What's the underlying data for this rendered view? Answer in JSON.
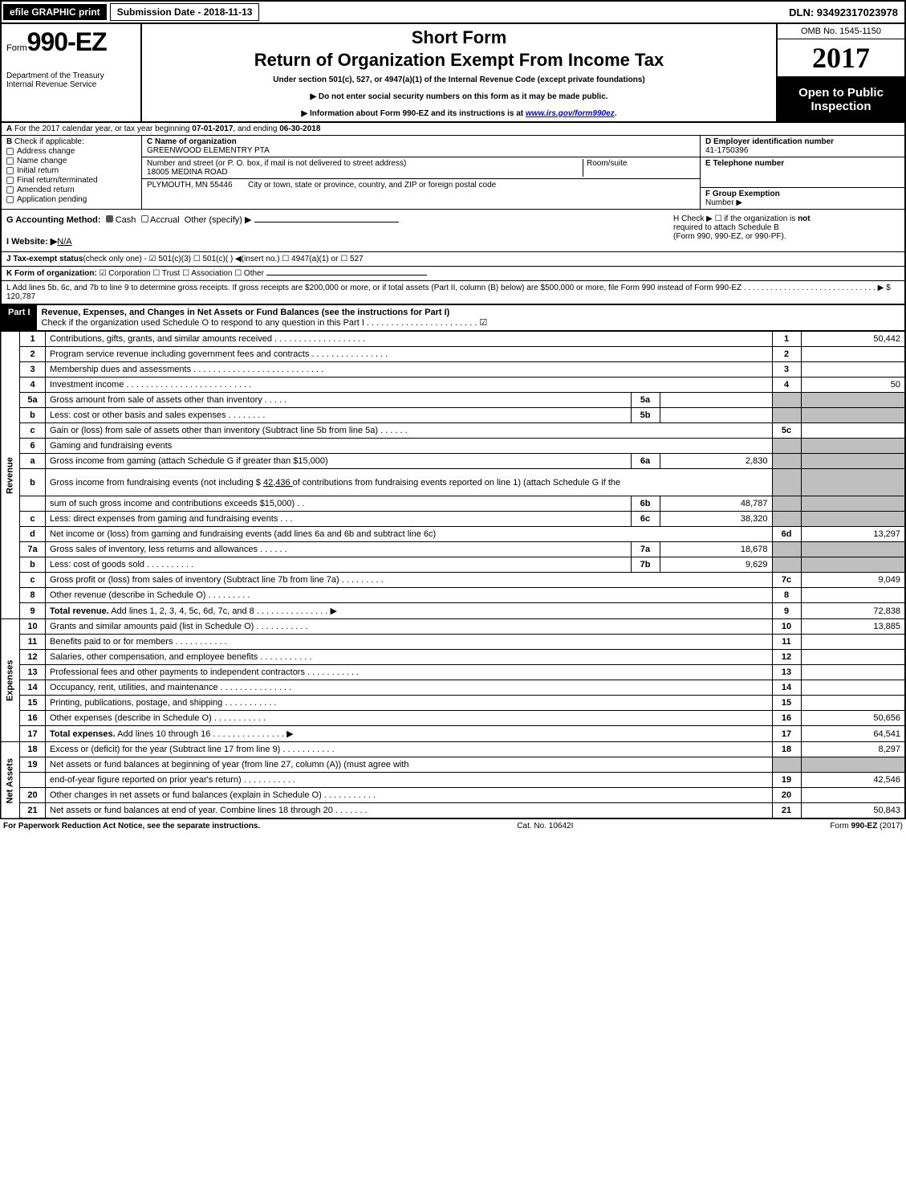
{
  "top": {
    "efile": "efile GRAPHIC print",
    "submission_label": "Submission Date - 2018-11-13",
    "dln": "DLN: 93492317023978"
  },
  "header": {
    "form_prefix": "Form",
    "form_number": "990-EZ",
    "dept1": "Department of the Treasury",
    "dept2": "Internal Revenue Service",
    "short_form": "Short Form",
    "return_title": "Return of Organization Exempt From Income Tax",
    "under_section": "Under section 501(c), 527, or 4947(a)(1) of the Internal Revenue Code (except private foundations)",
    "arrow1": "▶ Do not enter social security numbers on this form as it may be made public.",
    "arrow2_pre": "▶ Information about Form 990-EZ and its instructions is at ",
    "arrow2_link": "www.irs.gov/form990ez",
    "arrow2_post": ".",
    "omb": "OMB No. 1545-1150",
    "year": "2017",
    "open1": "Open to Public",
    "open2": "Inspection"
  },
  "lineA": {
    "text_pre": "For the 2017 calendar year, or tax year beginning ",
    "begin": "07-01-2017",
    "mid": ", and ending ",
    "end": "06-30-2018"
  },
  "lineB": {
    "label": "Check if applicable:",
    "opts": [
      "Address change",
      "Name change",
      "Initial return",
      "Final return/terminated",
      "Amended return",
      "Application pending"
    ]
  },
  "boxC": {
    "label": "C Name of organization",
    "name": "GREENWOOD ELEMENTRY PTA",
    "street_label": "Number and street (or P. O. box, if mail is not delivered to street address)",
    "street": "18005 MEDINA ROAD",
    "room_label": "Room/suite",
    "city_label": "City or town, state or province, country, and ZIP or foreign postal code",
    "city": "PLYMOUTH, MN  55446"
  },
  "boxD": {
    "label": "D Employer identification number",
    "value": "41-1750396"
  },
  "boxE": {
    "label": "E Telephone number",
    "value": ""
  },
  "boxF": {
    "label": "F Group Exemption",
    "label2": "Number  ▶",
    "value": ""
  },
  "lineG": {
    "label": "G Accounting Method:",
    "cash": "Cash",
    "accrual": "Accrual",
    "other": "Other (specify) ▶"
  },
  "lineH": {
    "text1": "H  Check ▶ ☐ if the organization is ",
    "not": "not",
    "text2": "required to attach Schedule B",
    "text3": "(Form 990, 990-EZ, or 990-PF)."
  },
  "lineI": {
    "label": "I Website: ▶",
    "value": "N/A"
  },
  "lineJ": {
    "label": "J Tax-exempt status",
    "text": "(check only one) - ☑ 501(c)(3)  ☐ 501(c)(  ) ◀(insert no.)  ☐ 4947(a)(1) or  ☐ 527"
  },
  "lineK": {
    "label": "K Form of organization:",
    "text": "☑ Corporation  ☐ Trust  ☐ Association  ☐ Other"
  },
  "lineL": {
    "text": "L Add lines 5b, 6c, and 7b to line 9 to determine gross receipts. If gross receipts are $200,000 or more, or if total assets (Part II, column (B) below) are $500,000 or more, file Form 990 instead of Form 990-EZ  .  .  .  .  .  .  .  .  .  .  .  .  .  .  .  .  .  .  .  .  .  .  .  .  .  .  .  .  .  .  ▶ $ 120,787"
  },
  "part1": {
    "label": "Part I",
    "title": "Revenue, Expenses, and Changes in Net Assets or Fund Balances (see the instructions for Part I)",
    "check_line": "Check if the organization used Schedule O to respond to any question in this Part I .  .  .  .  .  .  .  .  .  .  .  .  .  .  .  .  .  .  .  .  .  .  .  ☑"
  },
  "sections": {
    "revenue": "Revenue",
    "expenses": "Expenses",
    "net": "Net Assets"
  },
  "rows": [
    {
      "ln": "1",
      "desc": "Contributions, gifts, grants, and similar amounts received  .  .  .  .  .  .  .  .  .  .  .  .  .  .  .  .  .  .  .",
      "num": "1",
      "val": "50,442"
    },
    {
      "ln": "2",
      "desc": "Program service revenue including government fees and contracts  .  .  .  .  .  .  .  .  .  .  .  .  .  .  .  .",
      "num": "2",
      "val": ""
    },
    {
      "ln": "3",
      "desc": "Membership dues and assessments  .  .  .  .  .  .  .  .  .  .  .  .  .  .  .  .  .  .  .  .  .  .  .  .  .  .  .",
      "num": "3",
      "val": ""
    },
    {
      "ln": "4",
      "desc": "Investment income  .  .  .  .  .  .  .  .  .  .  .  .  .  .  .  .  .  .  .  .  .  .  .  .  .  .",
      "num": "4",
      "val": "50"
    },
    {
      "ln": "5a",
      "desc": "Gross amount from sale of assets other than inventory  .  .  .  .  .",
      "mid_ln": "5a",
      "mid_val": "",
      "shaded": true
    },
    {
      "ln": "b",
      "desc": "Less: cost or other basis and sales expenses  .  .  .  .  .  .  .  .",
      "mid_ln": "5b",
      "mid_val": "",
      "shaded": true
    },
    {
      "ln": "c",
      "desc": "Gain or (loss) from sale of assets other than inventory (Subtract line 5b from line 5a)      .   .   .   .   .   .",
      "num": "5c",
      "val": ""
    },
    {
      "ln": "6",
      "desc": "Gaming and fundraising events",
      "shaded": true,
      "no_mid": true
    },
    {
      "ln": "a",
      "desc": "Gross income from gaming (attach Schedule G if greater than $15,000)",
      "mid_ln": "6a",
      "mid_val": "2,830",
      "shaded": true
    },
    {
      "ln": "b",
      "desc_html": "Gross income from fundraising events (not including $ <span class='underline'>  42,436  </span>      of contributions from fundraising events reported on line 1) (attach Schedule G if the",
      "shaded": true,
      "no_mid": true,
      "tall": true
    },
    {
      "ln": "",
      "desc": "sum of such gross income and contributions exceeds $15,000)      .   .",
      "mid_ln": "6b",
      "mid_val": "48,787",
      "shaded": true
    },
    {
      "ln": "c",
      "desc": "Less: direct expenses from gaming and fundraising events      .   .   .",
      "mid_ln": "6c",
      "mid_val": "38,320",
      "shaded": true
    },
    {
      "ln": "d",
      "desc": "Net income or (loss) from gaming and fundraising events (add lines 6a and 6b and subtract line 6c)",
      "num": "6d",
      "val": "13,297"
    },
    {
      "ln": "7a",
      "desc": "Gross sales of inventory, less returns and allowances      .   .   .   .   .   .",
      "mid_ln": "7a",
      "mid_val": "18,678",
      "shaded": true
    },
    {
      "ln": "b",
      "desc": "Less: cost of goods sold                  .   .   .   .   .   .   .   .   .   .",
      "mid_ln": "7b",
      "mid_val": "9,629",
      "shaded": true
    },
    {
      "ln": "c",
      "desc": "Gross profit or (loss) from sales of inventory (Subtract line 7b from line 7a)      .   .   .   .   .   .   .   .   .",
      "num": "7c",
      "val": "9,049"
    },
    {
      "ln": "8",
      "desc": "Other revenue (describe in Schedule O)            .   .   .   .   .   .   .   .   .",
      "num": "8",
      "val": ""
    },
    {
      "ln": "9",
      "desc_html": "<b>Total revenue.</b> Add lines 1, 2, 3, 4, 5c, 6d, 7c, and 8      .   .   .   .   .   .   .   .   .   .   .   .   .   .   .  ▶",
      "num": "9",
      "val": "72,838"
    }
  ],
  "exp_rows": [
    {
      "ln": "10",
      "desc": "Grants and similar amounts paid (list in Schedule O)         .   .   .   .   .   .   .   .   .   .   .",
      "num": "10",
      "val": "13,885"
    },
    {
      "ln": "11",
      "desc": "Benefits paid to or for members                  .   .   .   .   .   .   .   .   .   .   .",
      "num": "11",
      "val": ""
    },
    {
      "ln": "12",
      "desc": "Salaries, other compensation, and employee benefits       .   .   .   .   .   .   .   .   .   .   .",
      "num": "12",
      "val": ""
    },
    {
      "ln": "13",
      "desc": "Professional fees and other payments to independent contractors    .   .   .   .   .   .   .   .   .   .   .",
      "num": "13",
      "val": ""
    },
    {
      "ln": "14",
      "desc": "Occupancy, rent, utilities, and maintenance     .   .   .   .   .   .   .   .   .   .   .   .   .   .   .",
      "num": "14",
      "val": ""
    },
    {
      "ln": "15",
      "desc": "Printing, publications, postage, and shipping          .   .   .   .   .   .   .   .   .   .   .",
      "num": "15",
      "val": ""
    },
    {
      "ln": "16",
      "desc": "Other expenses (describe in Schedule O)           .   .   .   .   .   .   .   .   .   .   .",
      "num": "16",
      "val": "50,656"
    },
    {
      "ln": "17",
      "desc_html": "<b>Total expenses.</b> Add lines 10 through 16        .   .   .   .   .   .   .   .   .   .   .   .   .   .   .  ▶",
      "num": "17",
      "val": "64,541"
    }
  ],
  "net_rows": [
    {
      "ln": "18",
      "desc": "Excess or (deficit) for the year (Subtract line 17 from line 9)       .   .   .   .   .   .   .   .   .   .   .",
      "num": "18",
      "val": "8,297"
    },
    {
      "ln": "19",
      "desc": "Net assets or fund balances at beginning of year (from line 27, column (A)) (must agree with",
      "shaded": true,
      "no_num": true
    },
    {
      "ln": "",
      "desc": "end-of-year figure reported on prior year's return)         .   .   .   .   .   .   .   .   .   .   .",
      "num": "19",
      "val": "42,546"
    },
    {
      "ln": "20",
      "desc": "Other changes in net assets or fund balances (explain in Schedule O)    .   .   .   .   .   .   .   .   .   .   .",
      "num": "20",
      "val": ""
    },
    {
      "ln": "21",
      "desc": "Net assets or fund balances at end of year. Combine lines 18 through 20       .   .   .   .   .   .   .",
      "num": "21",
      "val": "50,843"
    }
  ],
  "footer": {
    "left": "For Paperwork Reduction Act Notice, see the separate instructions.",
    "center": "Cat. No. 10642I",
    "right_pre": "Form ",
    "right_bold": "990-EZ",
    "right_post": " (2017)"
  },
  "colors": {
    "black": "#000000",
    "shade": "#bfbfbf",
    "link": "#0000ee"
  }
}
